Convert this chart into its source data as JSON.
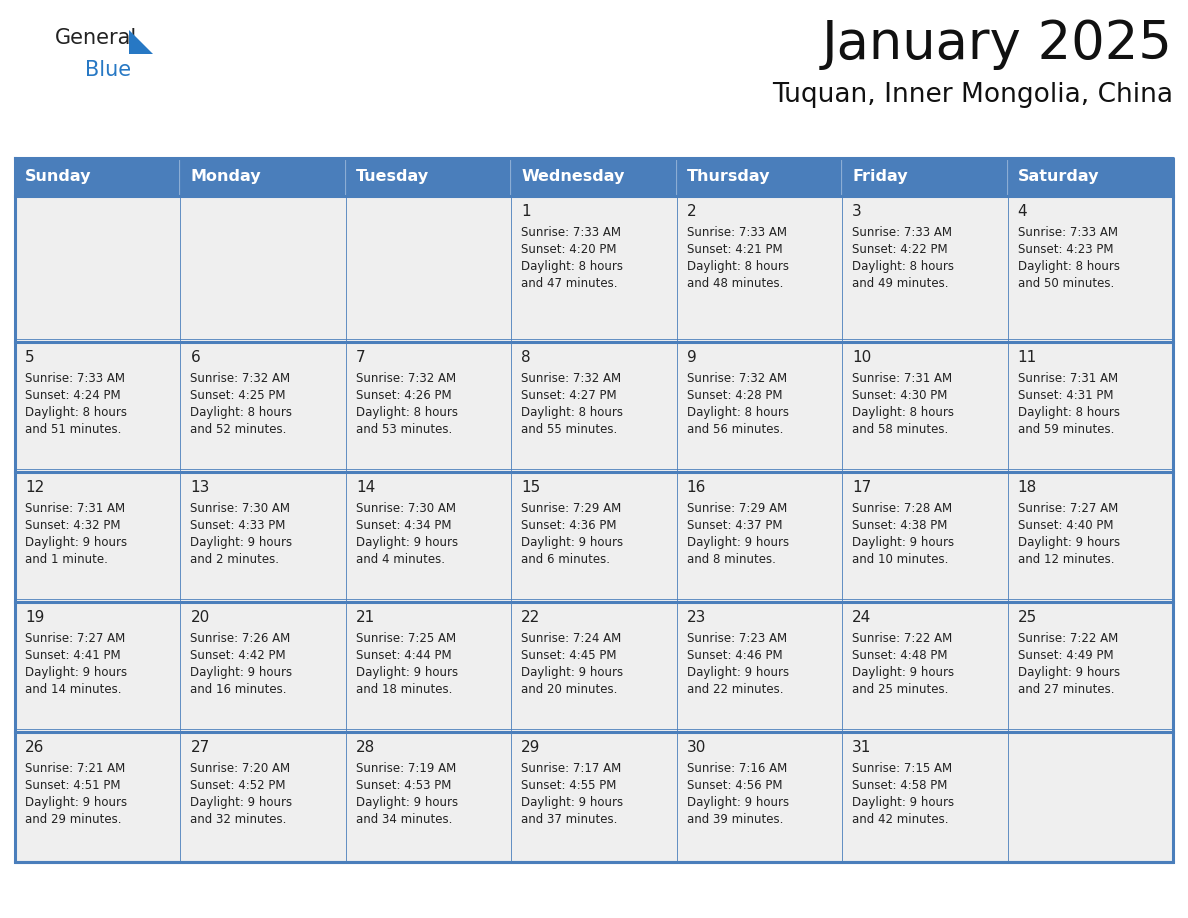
{
  "title": "January 2025",
  "subtitle": "Tuquan, Inner Mongolia, China",
  "days_of_week": [
    "Sunday",
    "Monday",
    "Tuesday",
    "Wednesday",
    "Thursday",
    "Friday",
    "Saturday"
  ],
  "header_bg": "#4A7EBB",
  "header_text_color": "#FFFFFF",
  "cell_bg": "#EFEFEF",
  "border_color": "#4A7EBB",
  "text_color_dark": "#222222",
  "text_color_black": "#111111",
  "calendar_data": [
    [
      {
        "day": "",
        "sunrise": "",
        "sunset": "",
        "daylight": ""
      },
      {
        "day": "",
        "sunrise": "",
        "sunset": "",
        "daylight": ""
      },
      {
        "day": "",
        "sunrise": "",
        "sunset": "",
        "daylight": ""
      },
      {
        "day": "1",
        "sunrise": "7:33 AM",
        "sunset": "4:20 PM",
        "daylight": "8 hours\nand 47 minutes."
      },
      {
        "day": "2",
        "sunrise": "7:33 AM",
        "sunset": "4:21 PM",
        "daylight": "8 hours\nand 48 minutes."
      },
      {
        "day": "3",
        "sunrise": "7:33 AM",
        "sunset": "4:22 PM",
        "daylight": "8 hours\nand 49 minutes."
      },
      {
        "day": "4",
        "sunrise": "7:33 AM",
        "sunset": "4:23 PM",
        "daylight": "8 hours\nand 50 minutes."
      }
    ],
    [
      {
        "day": "5",
        "sunrise": "7:33 AM",
        "sunset": "4:24 PM",
        "daylight": "8 hours\nand 51 minutes."
      },
      {
        "day": "6",
        "sunrise": "7:32 AM",
        "sunset": "4:25 PM",
        "daylight": "8 hours\nand 52 minutes."
      },
      {
        "day": "7",
        "sunrise": "7:32 AM",
        "sunset": "4:26 PM",
        "daylight": "8 hours\nand 53 minutes."
      },
      {
        "day": "8",
        "sunrise": "7:32 AM",
        "sunset": "4:27 PM",
        "daylight": "8 hours\nand 55 minutes."
      },
      {
        "day": "9",
        "sunrise": "7:32 AM",
        "sunset": "4:28 PM",
        "daylight": "8 hours\nand 56 minutes."
      },
      {
        "day": "10",
        "sunrise": "7:31 AM",
        "sunset": "4:30 PM",
        "daylight": "8 hours\nand 58 minutes."
      },
      {
        "day": "11",
        "sunrise": "7:31 AM",
        "sunset": "4:31 PM",
        "daylight": "8 hours\nand 59 minutes."
      }
    ],
    [
      {
        "day": "12",
        "sunrise": "7:31 AM",
        "sunset": "4:32 PM",
        "daylight": "9 hours\nand 1 minute."
      },
      {
        "day": "13",
        "sunrise": "7:30 AM",
        "sunset": "4:33 PM",
        "daylight": "9 hours\nand 2 minutes."
      },
      {
        "day": "14",
        "sunrise": "7:30 AM",
        "sunset": "4:34 PM",
        "daylight": "9 hours\nand 4 minutes."
      },
      {
        "day": "15",
        "sunrise": "7:29 AM",
        "sunset": "4:36 PM",
        "daylight": "9 hours\nand 6 minutes."
      },
      {
        "day": "16",
        "sunrise": "7:29 AM",
        "sunset": "4:37 PM",
        "daylight": "9 hours\nand 8 minutes."
      },
      {
        "day": "17",
        "sunrise": "7:28 AM",
        "sunset": "4:38 PM",
        "daylight": "9 hours\nand 10 minutes."
      },
      {
        "day": "18",
        "sunrise": "7:27 AM",
        "sunset": "4:40 PM",
        "daylight": "9 hours\nand 12 minutes."
      }
    ],
    [
      {
        "day": "19",
        "sunrise": "7:27 AM",
        "sunset": "4:41 PM",
        "daylight": "9 hours\nand 14 minutes."
      },
      {
        "day": "20",
        "sunrise": "7:26 AM",
        "sunset": "4:42 PM",
        "daylight": "9 hours\nand 16 minutes."
      },
      {
        "day": "21",
        "sunrise": "7:25 AM",
        "sunset": "4:44 PM",
        "daylight": "9 hours\nand 18 minutes."
      },
      {
        "day": "22",
        "sunrise": "7:24 AM",
        "sunset": "4:45 PM",
        "daylight": "9 hours\nand 20 minutes."
      },
      {
        "day": "23",
        "sunrise": "7:23 AM",
        "sunset": "4:46 PM",
        "daylight": "9 hours\nand 22 minutes."
      },
      {
        "day": "24",
        "sunrise": "7:22 AM",
        "sunset": "4:48 PM",
        "daylight": "9 hours\nand 25 minutes."
      },
      {
        "day": "25",
        "sunrise": "7:22 AM",
        "sunset": "4:49 PM",
        "daylight": "9 hours\nand 27 minutes."
      }
    ],
    [
      {
        "day": "26",
        "sunrise": "7:21 AM",
        "sunset": "4:51 PM",
        "daylight": "9 hours\nand 29 minutes."
      },
      {
        "day": "27",
        "sunrise": "7:20 AM",
        "sunset": "4:52 PM",
        "daylight": "9 hours\nand 32 minutes."
      },
      {
        "day": "28",
        "sunrise": "7:19 AM",
        "sunset": "4:53 PM",
        "daylight": "9 hours\nand 34 minutes."
      },
      {
        "day": "29",
        "sunrise": "7:17 AM",
        "sunset": "4:55 PM",
        "daylight": "9 hours\nand 37 minutes."
      },
      {
        "day": "30",
        "sunrise": "7:16 AM",
        "sunset": "4:56 PM",
        "daylight": "9 hours\nand 39 minutes."
      },
      {
        "day": "31",
        "sunrise": "7:15 AM",
        "sunset": "4:58 PM",
        "daylight": "9 hours\nand 42 minutes."
      },
      {
        "day": "",
        "sunrise": "",
        "sunset": "",
        "daylight": ""
      }
    ]
  ],
  "logo_text_general": "General",
  "logo_text_blue": "Blue",
  "logo_color_general": "#222222",
  "logo_color_blue": "#2778C4",
  "logo_triangle_color": "#2778C4"
}
